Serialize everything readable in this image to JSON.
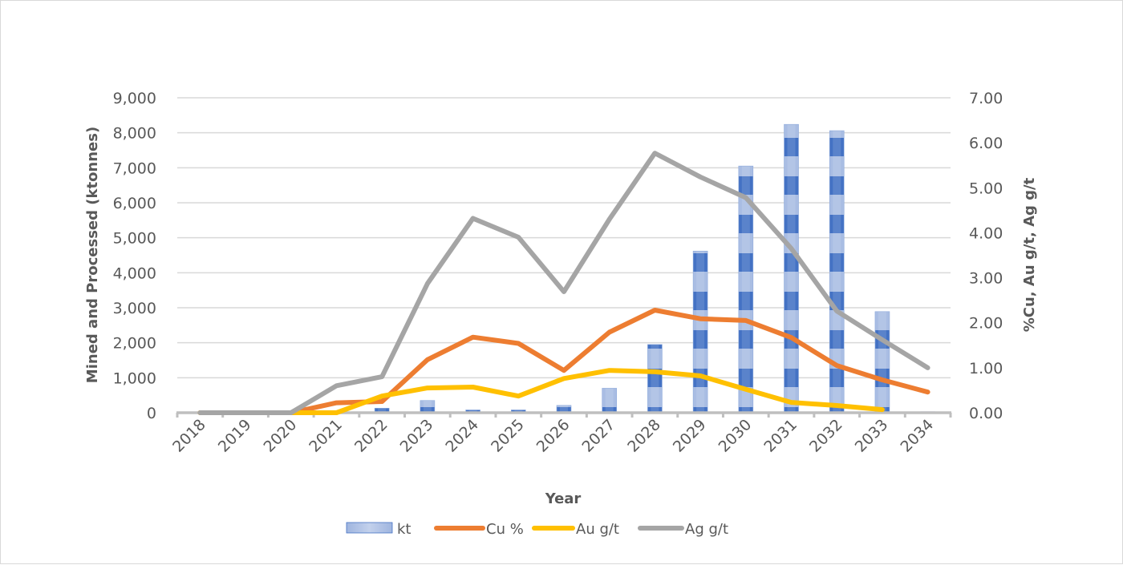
{
  "chart_data": {
    "type": "bar+line",
    "title": "",
    "categories": [
      "2018",
      "2019",
      "2020",
      "2021",
      "2022",
      "2023",
      "2024",
      "2025",
      "2026",
      "2027",
      "2028",
      "2029",
      "2030",
      "2031",
      "2032",
      "2033",
      "2034"
    ],
    "xlabel": "Year",
    "ylabel": "Mined and Processed (ktonnes)",
    "y2label": "%Cu, Au g/t, Ag g/t",
    "ylim": [
      0,
      9000
    ],
    "y2lim": [
      0,
      7
    ],
    "yticks": [
      "0",
      "1,000",
      "2,000",
      "3,000",
      "4,000",
      "5,000",
      "6,000",
      "7,000",
      "8,000",
      "9,000"
    ],
    "y2ticks": [
      "0.00",
      "1.00",
      "2.00",
      "3.00",
      "4.00",
      "5.00",
      "6.00",
      "7.00"
    ],
    "grid": true,
    "legend_position": "bottom",
    "series": [
      {
        "name": "kt",
        "type": "bar",
        "axis": "left",
        "color": "#4472c4",
        "color_light": "#a9bde3",
        "values": [
          0,
          0,
          0,
          40,
          130,
          350,
          80,
          80,
          210,
          700,
          1950,
          4620,
          7050,
          8240,
          8060,
          2890,
          30
        ]
      },
      {
        "name": "Cu %",
        "type": "line",
        "axis": "right",
        "color": "#ed7d31",
        "values": [
          0,
          0,
          0,
          0.22,
          0.25,
          1.18,
          1.68,
          1.54,
          0.94,
          1.79,
          2.28,
          2.09,
          2.05,
          1.67,
          1.05,
          0.73,
          0.46
        ]
      },
      {
        "name": "Au g/t",
        "type": "line",
        "axis": "right",
        "color": "#ffc000",
        "values": [
          0,
          0,
          0,
          0.0,
          0.37,
          0.55,
          0.57,
          0.37,
          0.76,
          0.94,
          0.91,
          0.82,
          0.52,
          0.23,
          0.16,
          0.07,
          null
        ]
      },
      {
        "name": "Ag g/t",
        "type": "line",
        "axis": "right",
        "color": "#a5a5a5",
        "values": [
          0,
          0,
          0,
          0.6,
          0.8,
          2.87,
          4.32,
          3.9,
          2.69,
          4.3,
          5.77,
          5.24,
          4.78,
          3.65,
          2.26,
          1.62,
          1.0
        ]
      }
    ]
  }
}
